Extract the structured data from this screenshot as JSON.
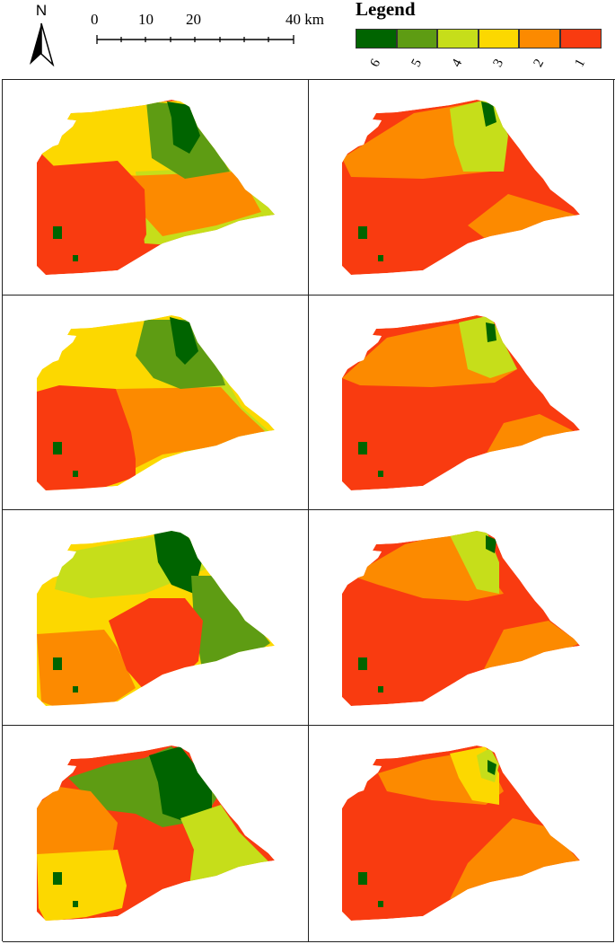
{
  "north_label": "N",
  "scale": {
    "ticks": [
      "0",
      "10",
      "20"
    ],
    "end_label": "40 km"
  },
  "legend": {
    "title": "Legend",
    "classes": [
      {
        "label": "6",
        "color": "#006400"
      },
      {
        "label": "5",
        "color": "#5e9c13"
      },
      {
        "label": "4",
        "color": "#c6de1a"
      },
      {
        "label": "3",
        "color": "#fcd800"
      },
      {
        "label": "2",
        "color": "#fc8a00"
      },
      {
        "label": "1",
        "color": "#f93b10"
      }
    ]
  },
  "map": {
    "panel_count": 8,
    "class_colors": {
      "1": "#f93b10",
      "2": "#fc8a00",
      "3": "#fcd800",
      "4": "#c6de1a",
      "5": "#5e9c13",
      "6": "#006400"
    }
  }
}
